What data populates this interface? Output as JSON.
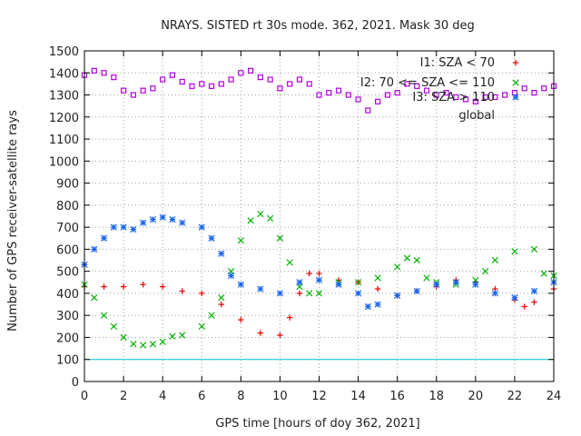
{
  "chart_data": {
    "type": "scatter",
    "title": "NRAYS. SISTED rt 30s mode. 362, 2021. Mask 30 deg",
    "xlabel": "GPS time [hours of doy 362, 2021]",
    "ylabel": "Number of GPS receiver-satellite rays",
    "xlim": [
      0,
      24
    ],
    "ylim": [
      0,
      1500
    ],
    "xticks": [
      0,
      2,
      4,
      6,
      8,
      10,
      12,
      14,
      16,
      18,
      20,
      22,
      24
    ],
    "yticks": [
      0,
      100,
      200,
      300,
      400,
      500,
      600,
      700,
      800,
      900,
      1000,
      1100,
      1200,
      1300,
      1400,
      1500
    ],
    "grid": true,
    "legend_position": "top-right",
    "reference_line": {
      "y": 100,
      "color": "#00c8e0"
    },
    "series": [
      {
        "name": "I1: SZA < 70",
        "marker": "+",
        "color": "#e60000",
        "x": [
          0,
          1,
          2,
          3,
          4,
          5,
          6,
          7,
          8,
          9,
          10,
          10.5,
          11,
          11.5,
          12,
          13,
          14,
          15,
          16,
          17,
          18,
          19,
          20,
          21,
          22,
          22.5,
          23,
          24
        ],
        "y": [
          430,
          430,
          430,
          440,
          430,
          410,
          400,
          350,
          280,
          220,
          210,
          290,
          400,
          490,
          490,
          460,
          450,
          420,
          390,
          410,
          430,
          460,
          450,
          420,
          370,
          340,
          360,
          420
        ]
      },
      {
        "name": "I2: 70 <= SZA <= 110",
        "marker": "x",
        "color": "#00b000",
        "x": [
          0,
          0.5,
          1,
          1.5,
          2,
          2.5,
          3,
          3.5,
          4,
          4.5,
          5,
          6,
          6.5,
          7,
          7.5,
          8,
          8.5,
          9,
          9.5,
          10,
          10.5,
          11,
          11.5,
          12,
          13,
          14,
          15,
          16,
          16.5,
          17,
          17.5,
          18,
          19,
          20,
          20.5,
          21,
          22,
          23,
          23.5,
          24
        ],
        "y": [
          440,
          380,
          300,
          250,
          200,
          170,
          165,
          170,
          180,
          205,
          210,
          250,
          300,
          380,
          500,
          640,
          730,
          760,
          740,
          650,
          540,
          430,
          400,
          400,
          450,
          450,
          470,
          520,
          560,
          550,
          470,
          450,
          440,
          460,
          500,
          550,
          590,
          600,
          490,
          480
        ]
      },
      {
        "name": "I3: SZA > 110",
        "marker": "*",
        "color": "#1a64f0",
        "x": [
          0,
          0.5,
          1,
          1.5,
          2,
          2.5,
          3,
          3.5,
          4,
          4.5,
          5,
          6,
          6.5,
          7,
          7.5,
          8,
          9,
          10,
          11,
          12,
          13,
          14,
          14.5,
          15,
          16,
          17,
          18,
          19,
          20,
          21,
          22,
          23,
          24
        ],
        "y": [
          530,
          600,
          650,
          700,
          700,
          690,
          720,
          735,
          745,
          735,
          720,
          700,
          650,
          580,
          480,
          440,
          420,
          400,
          450,
          460,
          440,
          400,
          340,
          350,
          390,
          410,
          440,
          450,
          440,
          400,
          380,
          410,
          450
        ]
      },
      {
        "name": "global",
        "marker": "□",
        "color": "#b000e0",
        "x": [
          0,
          0.5,
          1,
          1.5,
          2,
          2.5,
          3,
          3.5,
          4,
          4.5,
          5,
          5.5,
          6,
          6.5,
          7,
          7.5,
          8,
          8.5,
          9,
          9.5,
          10,
          10.5,
          11,
          11.5,
          12,
          12.5,
          13,
          13.5,
          14,
          14.5,
          15,
          15.5,
          16,
          16.5,
          17,
          17.5,
          18,
          18.5,
          19,
          19.5,
          20,
          20.5,
          21,
          21.5,
          22,
          22.5,
          23,
          23.5,
          24
        ],
        "y": [
          1390,
          1410,
          1400,
          1380,
          1320,
          1300,
          1320,
          1330,
          1370,
          1390,
          1360,
          1340,
          1350,
          1340,
          1350,
          1370,
          1400,
          1410,
          1380,
          1370,
          1330,
          1350,
          1370,
          1350,
          1300,
          1310,
          1320,
          1300,
          1280,
          1230,
          1270,
          1300,
          1310,
          1350,
          1340,
          1320,
          1300,
          1310,
          1290,
          1280,
          1270,
          1290,
          1290,
          1300,
          1310,
          1330,
          1310,
          1330,
          1340
        ]
      }
    ]
  }
}
